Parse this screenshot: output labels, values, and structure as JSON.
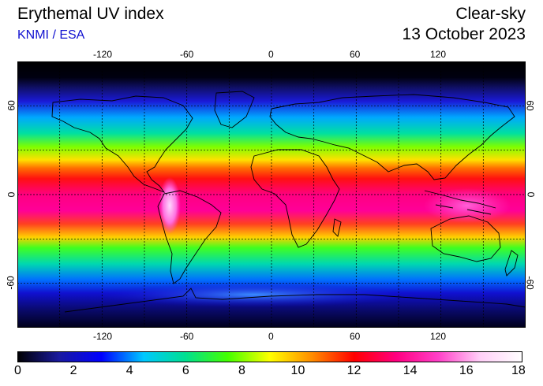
{
  "header": {
    "title": "Erythemal UV index",
    "source": "KNMI / ESA",
    "mode": "Clear-sky",
    "date": "13 October 2023"
  },
  "map": {
    "projection": "equirectangular",
    "lon_range": [
      -180,
      180
    ],
    "lat_range": [
      -90,
      90
    ],
    "lon_ticks": [
      "-120",
      "-60",
      "0",
      "60",
      "120"
    ],
    "lat_ticks": [
      "60",
      "0",
      "-60"
    ],
    "grid": "dashed, every 30 degrees"
  },
  "colorbar": {
    "min": 0,
    "max": 18,
    "ticks": [
      "0",
      "2",
      "4",
      "6",
      "8",
      "10",
      "12",
      "14",
      "16",
      "18"
    ],
    "colors": [
      "#000000",
      "#1a1aa0",
      "#0000ff",
      "#00c8ff",
      "#00e090",
      "#44ff00",
      "#ffff00",
      "#ff8c00",
      "#ff0000",
      "#ff0080",
      "#ff40c8",
      "#ffd0f8",
      "#ffffff"
    ]
  }
}
